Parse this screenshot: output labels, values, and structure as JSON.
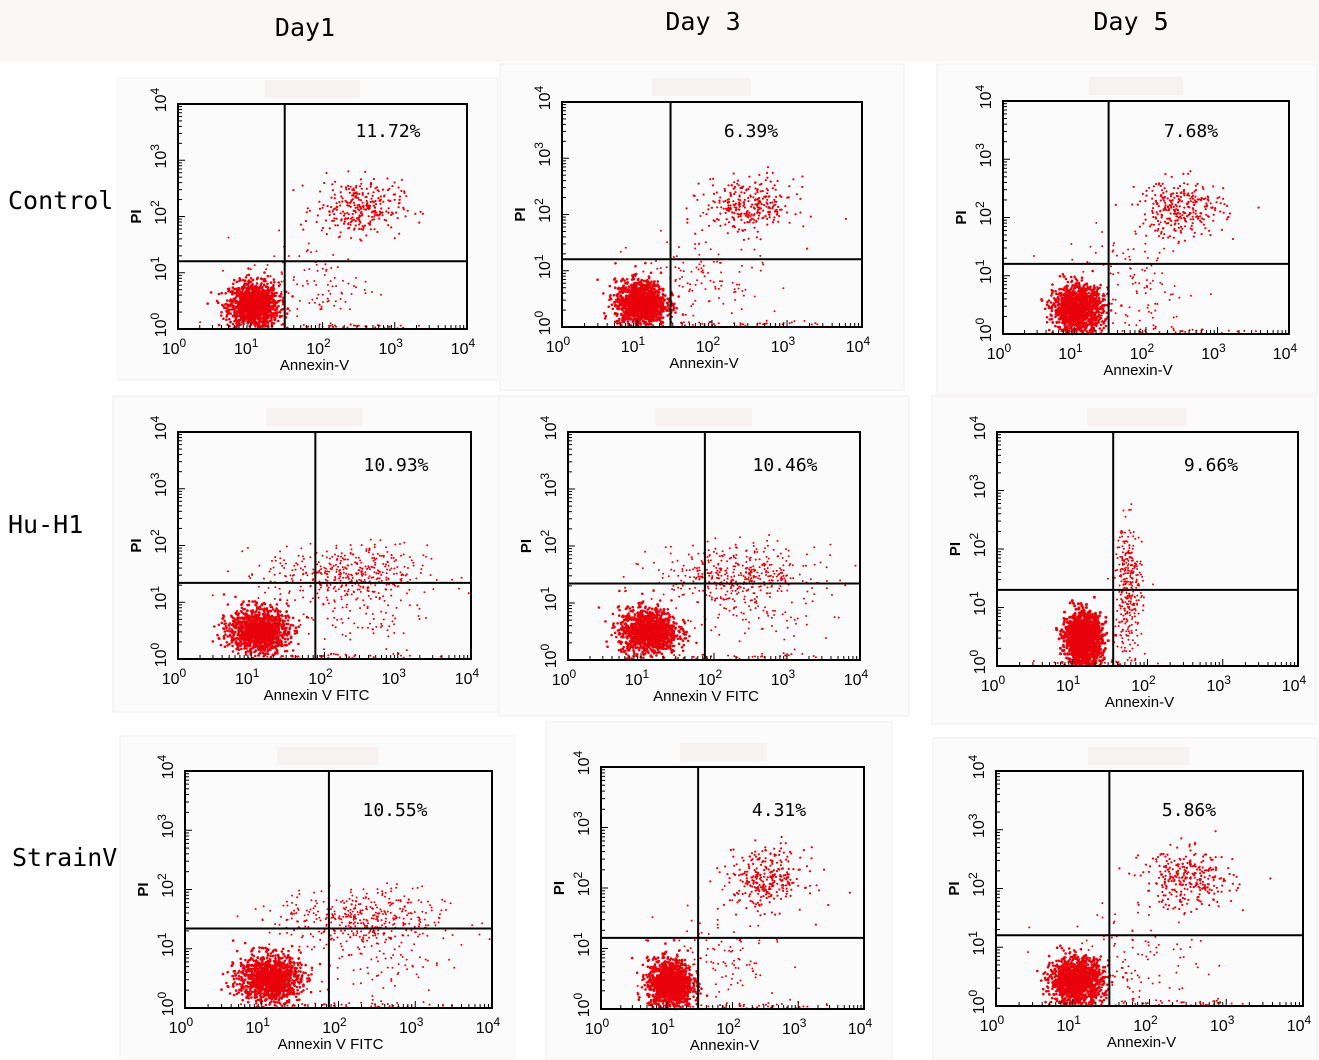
{
  "columns": [
    "Day1",
    "Day 3",
    "Day 5"
  ],
  "rows": [
    "Control",
    "Hu-H1",
    "StrainV"
  ],
  "colors": {
    "dot": "#e8000b",
    "axis": "#000000"
  },
  "chart_data": [
    {
      "type": "scatter",
      "row": "Control",
      "column": "Day1",
      "percent": "11.72%",
      "xlabel": "Annexin-V",
      "ylabel": "PI",
      "x_ticks": [
        "10^0",
        "10^1",
        "10^2",
        "10^3",
        "10^4"
      ],
      "y_ticks": [
        "10^0",
        "10^1",
        "10^2",
        "10^3",
        "10^4"
      ],
      "xlim": [
        1,
        10000
      ],
      "ylim": [
        1,
        10000
      ],
      "scale": "log",
      "gate": [
        30,
        16
      ]
    },
    {
      "type": "scatter",
      "row": "Control",
      "column": "Day 3",
      "percent": "6.39%",
      "xlabel": "Annexin-V",
      "ylabel": "PI",
      "x_ticks": [
        "10^0",
        "10^1",
        "10^2",
        "10^3",
        "10^4"
      ],
      "y_ticks": [
        "10^0",
        "10^1",
        "10^2",
        "10^3",
        "10^4"
      ],
      "xlim": [
        1,
        10000
      ],
      "ylim": [
        1,
        10000
      ],
      "scale": "log",
      "gate": [
        28,
        16
      ]
    },
    {
      "type": "scatter",
      "row": "Control",
      "column": "Day 5",
      "percent": "7.68%",
      "xlabel": "Annexin-V",
      "ylabel": "PI",
      "x_ticks": [
        "10^0",
        "10^1",
        "10^2",
        "10^3",
        "10^4"
      ],
      "y_ticks": [
        "10^0",
        "10^1",
        "10^2",
        "10^3",
        "10^4"
      ],
      "xlim": [
        1,
        10000
      ],
      "ylim": [
        1,
        10000
      ],
      "scale": "log",
      "gate": [
        30,
        16
      ]
    },
    {
      "type": "scatter",
      "row": "Hu-H1",
      "column": "Day1",
      "percent": "10.93%",
      "xlabel": "Annexin V FITC",
      "ylabel": "PI",
      "x_ticks": [
        "10^0",
        "10^1",
        "10^2",
        "10^3",
        "10^4"
      ],
      "y_ticks": [
        "10^0",
        "10^1",
        "10^2",
        "10^3",
        "10^4"
      ],
      "xlim": [
        1,
        10000
      ],
      "ylim": [
        1,
        10000
      ],
      "scale": "log",
      "gate": [
        75,
        22
      ]
    },
    {
      "type": "scatter",
      "row": "Hu-H1",
      "column": "Day 3",
      "percent": "10.46%",
      "xlabel": "Annexin V FITC",
      "ylabel": "PI",
      "x_ticks": [
        "10^0",
        "10^1",
        "10^2",
        "10^3",
        "10^4"
      ],
      "y_ticks": [
        "10^0",
        "10^1",
        "10^2",
        "10^3",
        "10^4"
      ],
      "xlim": [
        1,
        10000
      ],
      "ylim": [
        1,
        10000
      ],
      "scale": "log",
      "gate": [
        75,
        22
      ]
    },
    {
      "type": "scatter",
      "row": "Hu-H1",
      "column": "Day 5",
      "percent": "9.66%",
      "xlabel": "Annexin-V",
      "ylabel": "PI",
      "x_ticks": [
        "10^0",
        "10^1",
        "10^2",
        "10^3",
        "10^4"
      ],
      "y_ticks": [
        "10^0",
        "10^1",
        "10^2",
        "10^3",
        "10^4"
      ],
      "xlim": [
        1,
        10000
      ],
      "ylim": [
        1,
        10000
      ],
      "scale": "log",
      "gate": [
        35,
        20
      ]
    },
    {
      "type": "scatter",
      "row": "StrainV",
      "column": "Day1",
      "percent": "10.55%",
      "xlabel": "Annexin V FITC",
      "ylabel": "PI",
      "x_ticks": [
        "10^0",
        "10^1",
        "10^2",
        "10^3",
        "10^4"
      ],
      "y_ticks": [
        "10^0",
        "10^1",
        "10^2",
        "10^3",
        "10^4"
      ],
      "xlim": [
        1,
        10000
      ],
      "ylim": [
        1,
        10000
      ],
      "scale": "log",
      "gate": [
        75,
        22
      ]
    },
    {
      "type": "scatter",
      "row": "StrainV",
      "column": "Day 3",
      "percent": "4.31%",
      "xlabel": "Annexin-V",
      "ylabel": "PI",
      "x_ticks": [
        "10^0",
        "10^1",
        "10^2",
        "10^3",
        "10^4"
      ],
      "y_ticks": [
        "10^0",
        "10^1",
        "10^2",
        "10^3",
        "10^4"
      ],
      "xlim": [
        1,
        10000
      ],
      "ylim": [
        1,
        10000
      ],
      "scale": "log",
      "gate": [
        30,
        15
      ]
    },
    {
      "type": "scatter",
      "row": "StrainV",
      "column": "Day 5",
      "percent": "5.86%",
      "xlabel": "Annexin-V",
      "ylabel": "PI",
      "x_ticks": [
        "10^0",
        "10^1",
        "10^2",
        "10^3",
        "10^4"
      ],
      "y_ticks": [
        "10^0",
        "10^1",
        "10^2",
        "10^3",
        "10^4"
      ],
      "xlim": [
        1,
        10000
      ],
      "ylim": [
        1,
        10000
      ],
      "scale": "log",
      "gate": [
        30,
        16
      ]
    }
  ]
}
